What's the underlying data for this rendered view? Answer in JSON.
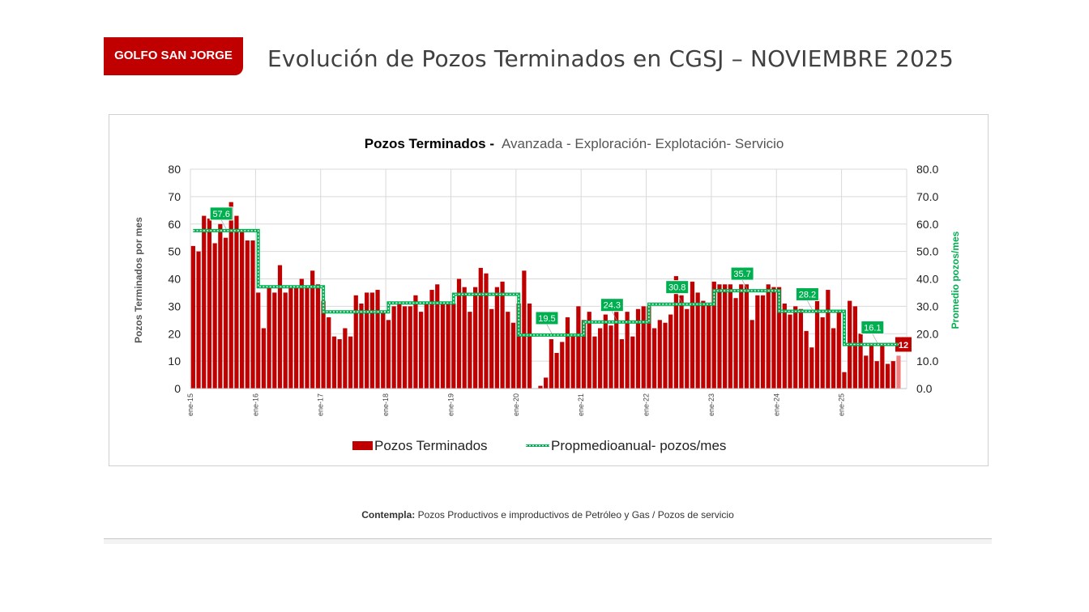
{
  "header": {
    "badge": "GOLFO SAN JORGE",
    "title": "Evolución de Pozos Terminados en CGSJ –  NOVIEMBRE 2025"
  },
  "footnote": {
    "label": "Contempla:",
    "text": " Pozos Productivos e improductivos de Petróleo y Gas / Pozos de servicio"
  },
  "colors": {
    "bar": "#c00000",
    "bar_last": "#f08080",
    "avg_line": "#00b050",
    "badge": "#c00000"
  },
  "chart_data": {
    "type": "bar",
    "title_bold": "Pozos Terminados  -",
    "title_rest": "Avanzada - Exploración- Explotación- Servicio",
    "ylabel_left": "Pozos Terminados por mes",
    "ylabel_right": "Promedio pozos/mes",
    "ylim_left": [
      0,
      80
    ],
    "ylim_right": [
      0,
      80
    ],
    "yticks_left": [
      "0",
      "10",
      "20",
      "30",
      "40",
      "50",
      "60",
      "70",
      "80"
    ],
    "yticks_right": [
      "0.0",
      "10.0",
      "20.0",
      "30.0",
      "40.0",
      "50.0",
      "60.0",
      "70.0",
      "80.0"
    ],
    "x_tick_labels": [
      "ene-15",
      "ene-16",
      "ene-17",
      "ene-18",
      "ene-19",
      "ene-20",
      "ene-21",
      "ene-22",
      "ene-23",
      "ene-24",
      "ene-25"
    ],
    "legend": [
      "Pozos Terminados",
      "Propmedioanual- pozos/mes"
    ],
    "series": [
      {
        "name": "Pozos Terminados",
        "values": [
          52,
          50,
          63,
          62,
          53,
          60,
          55,
          68,
          63,
          57,
          54,
          54,
          35,
          22,
          37,
          35,
          45,
          35,
          37,
          37,
          40,
          37,
          43,
          38,
          32,
          26,
          19,
          18,
          22,
          19,
          34,
          31,
          35,
          35,
          36,
          28,
          25,
          30,
          31,
          30,
          30,
          34,
          28,
          31,
          36,
          38,
          31,
          31,
          31,
          40,
          37,
          28,
          37,
          44,
          42,
          29,
          37,
          39,
          28,
          24,
          31,
          43,
          31,
          0,
          1,
          4,
          18,
          13,
          17,
          26,
          20,
          30,
          25,
          28,
          19,
          22,
          27,
          23,
          28,
          18,
          28,
          19,
          29,
          30,
          30,
          22,
          25,
          24,
          27,
          41,
          34,
          29,
          39,
          35,
          32,
          31,
          39,
          38,
          38,
          38,
          33,
          38,
          38,
          25,
          34,
          34,
          38,
          37,
          37,
          31,
          27,
          30,
          29,
          21,
          15,
          33,
          26,
          36,
          22,
          28,
          6,
          32,
          30,
          20,
          12,
          16,
          10,
          16,
          9,
          10,
          12
        ]
      },
      {
        "name": "Propmedioanual- pozos/mes",
        "annual_averages": [
          57.6,
          37.1,
          28.0,
          31.2,
          34.4,
          19.5,
          24.3,
          30.8,
          35.7,
          28.2,
          16.1
        ],
        "labels": [
          "57.6",
          "19.5",
          "24.3",
          "30.8",
          "35.7",
          "28.2",
          "16.1"
        ],
        "labeled_years": [
          0,
          5,
          6,
          7,
          8,
          9,
          10
        ]
      }
    ],
    "last_value_label": "12"
  }
}
